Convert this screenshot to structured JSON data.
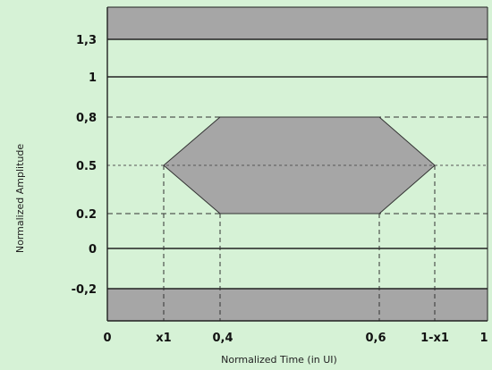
{
  "colors": {
    "background": "#d6f2d6",
    "mask": "#a6a6a6",
    "line": "#222222"
  },
  "diagram": {
    "y_ticks": [
      "1,3",
      "1",
      "0,8",
      "0.5",
      "0.2",
      "0",
      "-0,2"
    ],
    "x_ticks": [
      "0",
      "x1",
      "0,4",
      "0,6",
      "1-x1",
      "1"
    ],
    "ylabel": "Normalized Amplitude",
    "xlabel": "Normalized Time (in UI)"
  },
  "chart_data": {
    "type": "eye-mask",
    "ylabel": "Normalized Amplitude",
    "xlabel": "Normalized Time (in UI)",
    "x_ticks": [
      "0",
      "x1",
      "0,4",
      "0,6",
      "1-x1",
      "1"
    ],
    "y_ticks": [
      "1,3",
      "1",
      "0,8",
      "0.5",
      "0.2",
      "0",
      "-0,2"
    ],
    "upper_mask_from": 1.3,
    "lower_mask_below": -0.2,
    "eye_mask_hexagon": [
      {
        "x": "x1",
        "y": 0.5
      },
      {
        "x": 0.4,
        "y": 0.8
      },
      {
        "x": 0.6,
        "y": 0.8
      },
      {
        "x": "1-x1",
        "y": 0.5
      },
      {
        "x": 0.6,
        "y": 0.2
      },
      {
        "x": 0.4,
        "y": 0.2
      }
    ]
  }
}
